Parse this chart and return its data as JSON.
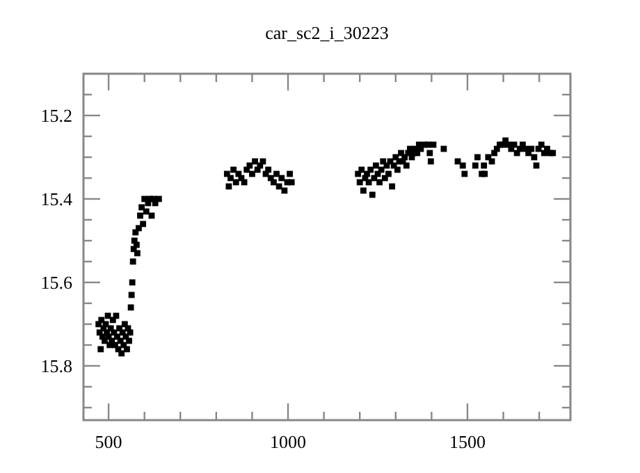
{
  "chart_data": {
    "type": "scatter",
    "title": "car_sc2_i_30223",
    "marker": "square",
    "grid": false,
    "xlim": [
      430,
      1787
    ],
    "ylim": [
      15.93,
      15.1
    ],
    "xticks": [
      {
        "value": 500,
        "label": "500"
      },
      {
        "value": 600,
        "label": null
      },
      {
        "value": 700,
        "label": null
      },
      {
        "value": 800,
        "label": null
      },
      {
        "value": 900,
        "label": null
      },
      {
        "value": 1000,
        "label": "1000"
      },
      {
        "value": 1100,
        "label": null
      },
      {
        "value": 1200,
        "label": null
      },
      {
        "value": 1300,
        "label": null
      },
      {
        "value": 1400,
        "label": null
      },
      {
        "value": 1500,
        "label": "1500"
      },
      {
        "value": 1600,
        "label": null
      },
      {
        "value": 1700,
        "label": null
      }
    ],
    "yticks": [
      {
        "value": 15.15,
        "label": null
      },
      {
        "value": 15.2,
        "label": "15.2"
      },
      {
        "value": 15.25,
        "label": null
      },
      {
        "value": 15.3,
        "label": null
      },
      {
        "value": 15.35,
        "label": null
      },
      {
        "value": 15.4,
        "label": "15.4"
      },
      {
        "value": 15.45,
        "label": null
      },
      {
        "value": 15.5,
        "label": null
      },
      {
        "value": 15.55,
        "label": null
      },
      {
        "value": 15.6,
        "label": "15.6"
      },
      {
        "value": 15.65,
        "label": null
      },
      {
        "value": 15.7,
        "label": null
      },
      {
        "value": 15.75,
        "label": null
      },
      {
        "value": 15.8,
        "label": "15.8"
      },
      {
        "value": 15.85,
        "label": null
      },
      {
        "value": 15.9,
        "label": null
      }
    ],
    "series": [
      {
        "color": "#000000",
        "x": [
          472,
          475,
          478,
          480,
          483,
          486,
          489,
          492,
          495,
          498,
          500,
          503,
          506,
          509,
          512,
          515,
          518,
          521,
          524,
          527,
          530,
          533,
          536,
          539,
          542,
          545,
          548,
          551,
          554,
          557,
          560,
          562,
          564,
          566,
          568,
          570,
          572,
          575,
          578,
          580,
          584,
          588,
          592,
          596,
          600,
          605,
          610,
          615,
          620,
          625,
          630,
          640,
          830,
          835,
          840,
          848,
          855,
          862,
          870,
          878,
          885,
          893,
          900,
          908,
          915,
          922,
          930,
          938,
          945,
          952,
          960,
          968,
          975,
          982,
          990,
          998,
          1005,
          1010,
          1195,
          1200,
          1205,
          1210,
          1215,
          1220,
          1225,
          1230,
          1235,
          1240,
          1245,
          1250,
          1255,
          1260,
          1265,
          1270,
          1275,
          1280,
          1285,
          1290,
          1295,
          1300,
          1305,
          1310,
          1315,
          1320,
          1325,
          1330,
          1335,
          1340,
          1345,
          1350,
          1355,
          1360,
          1365,
          1370,
          1380,
          1390,
          1395,
          1398,
          1405,
          1434,
          1473,
          1487,
          1492,
          1522,
          1528,
          1540,
          1548,
          1546,
          1558,
          1568,
          1575,
          1582,
          1590,
          1598,
          1606,
          1614,
          1622,
          1630,
          1638,
          1646,
          1654,
          1662,
          1670,
          1678,
          1686,
          1692,
          1698,
          1706,
          1714,
          1722,
          1730,
          1738
        ],
        "values": [
          15.7,
          15.72,
          15.76,
          15.69,
          15.73,
          15.71,
          15.74,
          15.7,
          15.72,
          15.68,
          15.73,
          15.75,
          15.71,
          15.74,
          15.69,
          15.72,
          15.75,
          15.68,
          15.73,
          15.76,
          15.71,
          15.74,
          15.77,
          15.72,
          15.75,
          15.7,
          15.73,
          15.76,
          15.71,
          15.74,
          15.72,
          15.66,
          15.63,
          15.6,
          15.55,
          15.52,
          15.5,
          15.48,
          15.51,
          15.53,
          15.47,
          15.44,
          15.42,
          15.46,
          15.4,
          15.43,
          15.41,
          15.4,
          15.44,
          15.4,
          15.41,
          15.4,
          15.34,
          15.37,
          15.35,
          15.33,
          15.36,
          15.34,
          15.35,
          15.36,
          15.33,
          15.32,
          15.34,
          15.31,
          15.33,
          15.32,
          15.31,
          15.34,
          15.33,
          15.35,
          15.36,
          15.34,
          15.37,
          15.35,
          15.38,
          15.36,
          15.34,
          15.36,
          15.34,
          15.36,
          15.33,
          15.38,
          15.35,
          15.34,
          15.36,
          15.33,
          15.39,
          15.35,
          15.32,
          15.34,
          15.36,
          15.33,
          15.31,
          15.35,
          15.32,
          15.34,
          15.31,
          15.37,
          15.32,
          15.3,
          15.33,
          15.31,
          15.29,
          15.31,
          15.3,
          15.32,
          15.29,
          15.28,
          15.3,
          15.29,
          15.28,
          15.29,
          15.27,
          15.28,
          15.27,
          15.27,
          15.29,
          15.31,
          15.27,
          15.28,
          15.31,
          15.32,
          15.34,
          15.32,
          15.3,
          15.34,
          15.34,
          15.32,
          15.3,
          15.31,
          15.29,
          15.28,
          15.27,
          15.27,
          15.26,
          15.27,
          15.28,
          15.27,
          15.29,
          15.28,
          15.27,
          15.28,
          15.29,
          15.28,
          15.3,
          15.32,
          15.28,
          15.27,
          15.29,
          15.28,
          15.29,
          15.29
        ]
      }
    ]
  }
}
